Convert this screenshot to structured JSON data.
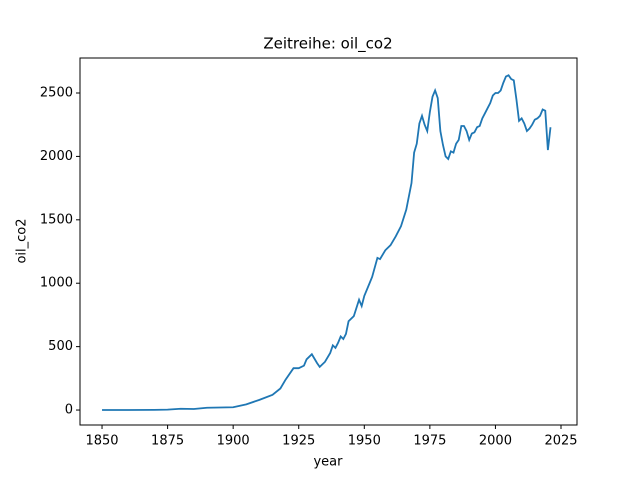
{
  "chart_data": {
    "type": "line",
    "title": "Zeitreihe: oil_co2",
    "x_label": "year",
    "y_label": "oil_co2",
    "x": [
      1850,
      1860,
      1870,
      1875,
      1880,
      1885,
      1890,
      1895,
      1900,
      1905,
      1910,
      1915,
      1918,
      1920,
      1923,
      1925,
      1927,
      1928,
      1930,
      1932,
      1933,
      1935,
      1937,
      1938,
      1939,
      1940,
      1941,
      1942,
      1943,
      1944,
      1946,
      1948,
      1949,
      1950,
      1952,
      1953,
      1955,
      1956,
      1958,
      1960,
      1962,
      1964,
      1966,
      1968,
      1969,
      1970,
      1971,
      1972,
      1973,
      1974,
      1975,
      1976,
      1977,
      1978,
      1979,
      1980,
      1981,
      1982,
      1983,
      1984,
      1985,
      1986,
      1987,
      1988,
      1989,
      1990,
      1991,
      1992,
      1993,
      1994,
      1995,
      1996,
      1997,
      1998,
      1999,
      2000,
      2001,
      2002,
      2003,
      2004,
      2005,
      2006,
      2007,
      2008,
      2009,
      2010,
      2011,
      2012,
      2013,
      2014,
      2015,
      2016,
      2017,
      2018,
      2019,
      2020,
      2021
    ],
    "series": [
      {
        "name": "oil_co2",
        "color": "#1f77b4",
        "values": [
          0,
          0,
          1,
          3,
          10,
          8,
          18,
          20,
          22,
          45,
          80,
          120,
          170,
          240,
          330,
          330,
          350,
          400,
          440,
          370,
          340,
          380,
          450,
          510,
          490,
          530,
          580,
          560,
          600,
          700,
          740,
          870,
          820,
          900,
          1000,
          1050,
          1200,
          1190,
          1260,
          1300,
          1370,
          1450,
          1580,
          1790,
          2030,
          2100,
          2260,
          2320,
          2250,
          2200,
          2350,
          2470,
          2520,
          2460,
          2200,
          2090,
          2000,
          1980,
          2040,
          2030,
          2100,
          2130,
          2240,
          2240,
          2200,
          2130,
          2180,
          2190,
          2230,
          2240,
          2300,
          2340,
          2380,
          2420,
          2480,
          2500,
          2500,
          2520,
          2580,
          2630,
          2640,
          2610,
          2600,
          2450,
          2280,
          2300,
          2260,
          2200,
          2220,
          2250,
          2290,
          2300,
          2320,
          2370,
          2360,
          2050,
          2230
        ]
      }
    ],
    "xlim": [
      1841.6,
      2031.1
    ],
    "xticks": [
      1850,
      1875,
      1900,
      1925,
      1950,
      1975,
      2000,
      2025
    ],
    "ylim": [
      -118,
      2776
    ],
    "yticks": [
      0,
      500,
      1000,
      1500,
      2000,
      2500
    ],
    "grid": false
  }
}
